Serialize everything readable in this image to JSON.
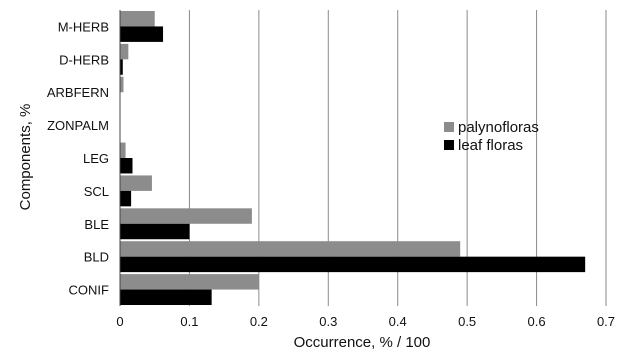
{
  "chart_data": {
    "type": "bar",
    "orientation": "horizontal",
    "xlabel": "Occurrence, % / 100",
    "ylabel": "Components, %",
    "categories": [
      "M-HERB",
      "D-HERB",
      "ARBFERN",
      "ZONPALM",
      "LEG",
      "SCL",
      "BLE",
      "BLD",
      "CONIF"
    ],
    "series": [
      {
        "name": "palynofloras",
        "color": "#8c8c8c",
        "values": [
          0.05,
          0.012,
          0.005,
          0.0,
          0.008,
          0.046,
          0.19,
          0.49,
          0.2
        ]
      },
      {
        "name": "leaf floras",
        "color": "#000000",
        "values": [
          0.062,
          0.004,
          0.0,
          0.0,
          0.018,
          0.016,
          0.1,
          0.67,
          0.132
        ]
      }
    ],
    "xlim": [
      0,
      0.7
    ],
    "xticks": [
      "0",
      "0.1",
      "0.2",
      "0.3",
      "0.4",
      "0.5",
      "0.6",
      "0.7"
    ],
    "grid": "vertical",
    "legend_position": "right"
  }
}
